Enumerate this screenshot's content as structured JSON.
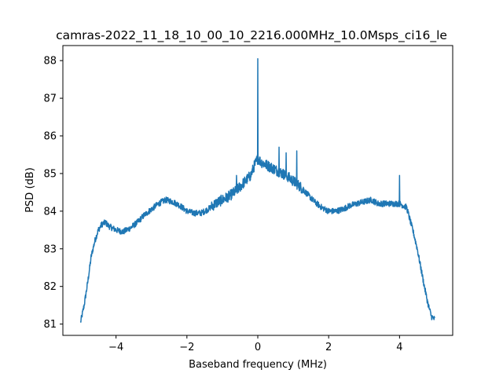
{
  "chart_data": {
    "type": "line",
    "title": "camras-2022_11_18_10_00_10_2216.000MHz_10.0Msps_ci16_le",
    "xlabel": "Baseband frequency (MHz)",
    "ylabel": "PSD (dB)",
    "xlim": [
      -5.5,
      5.5
    ],
    "ylim": [
      80.7,
      88.4
    ],
    "xticks": [
      -4,
      -2,
      0,
      2,
      4
    ],
    "xtick_labels": [
      "−4",
      "−2",
      "0",
      "2",
      "4"
    ],
    "yticks": [
      81,
      82,
      83,
      84,
      85,
      86,
      87,
      88
    ],
    "ytick_labels": [
      "81",
      "82",
      "83",
      "84",
      "85",
      "86",
      "87",
      "88"
    ],
    "grid": false,
    "series": [
      {
        "color": "#1f77b4",
        "x": [
          -5.0,
          -4.9,
          -4.8,
          -4.7,
          -4.6,
          -4.5,
          -4.4,
          -4.3,
          -4.2,
          -4.0,
          -3.8,
          -3.6,
          -3.4,
          -3.2,
          -3.0,
          -2.8,
          -2.6,
          -2.4,
          -2.2,
          -2.0,
          -1.8,
          -1.6,
          -1.4,
          -1.2,
          -1.0,
          -0.8,
          -0.6,
          -0.4,
          -0.2,
          -0.1,
          0.0,
          0.1,
          0.2,
          0.4,
          0.6,
          0.8,
          1.0,
          1.2,
          1.4,
          1.6,
          1.8,
          2.0,
          2.2,
          2.4,
          2.6,
          2.8,
          3.0,
          3.2,
          3.4,
          3.6,
          3.8,
          4.0,
          4.2,
          4.4,
          4.5,
          4.6,
          4.7,
          4.8,
          4.9,
          5.0
        ],
        "y": [
          81.05,
          81.5,
          82.1,
          82.8,
          83.2,
          83.5,
          83.65,
          83.7,
          83.6,
          83.5,
          83.45,
          83.55,
          83.7,
          83.9,
          84.05,
          84.2,
          84.3,
          84.25,
          84.15,
          84.0,
          83.95,
          83.95,
          84.05,
          84.2,
          84.3,
          84.4,
          84.55,
          84.75,
          84.95,
          85.2,
          85.4,
          85.3,
          85.25,
          85.15,
          85.05,
          84.95,
          84.8,
          84.65,
          84.45,
          84.25,
          84.1,
          84.0,
          84.0,
          84.05,
          84.15,
          84.2,
          84.25,
          84.3,
          84.2,
          84.2,
          84.2,
          84.2,
          84.1,
          83.4,
          83.0,
          82.5,
          82.0,
          81.55,
          81.2,
          81.12
        ]
      }
    ],
    "spikes": [
      {
        "x": -0.6,
        "y": 84.95
      },
      {
        "x": 0.0,
        "y": 88.05
      },
      {
        "x": 0.6,
        "y": 85.7
      },
      {
        "x": 0.8,
        "y": 85.55
      },
      {
        "x": 1.1,
        "y": 85.6
      },
      {
        "x": 4.0,
        "y": 84.95
      }
    ]
  }
}
